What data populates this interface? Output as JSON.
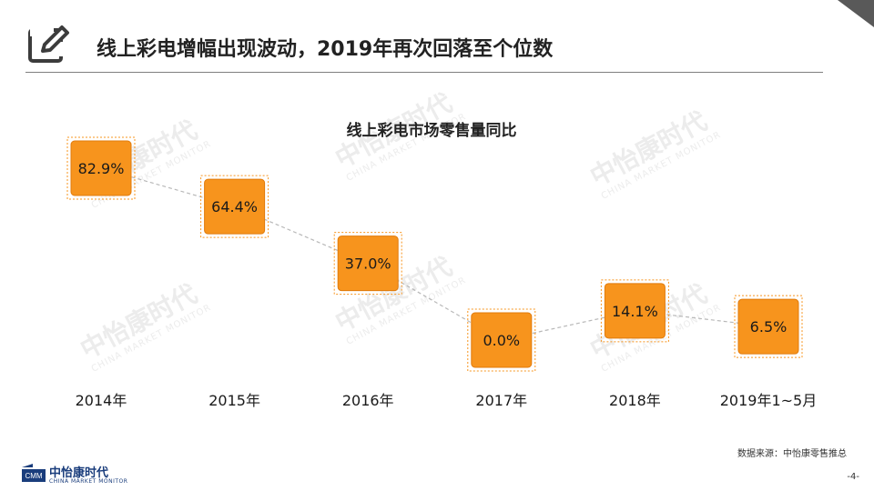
{
  "slide": {
    "title": "线上彩电增幅出现波动，2019年再次回落至个位数",
    "source": "数据来源：中怡康零售推总",
    "page_number": "-4-"
  },
  "logo": {
    "cn": "中怡康时代",
    "en": "CHINA MARKET MONITOR"
  },
  "watermark": {
    "cn": "中怡康时代",
    "en": "CHINA MARKET MONITOR"
  },
  "colors": {
    "box_fill": "#f7941d",
    "box_border": "#e07b0c",
    "connector": "#b8b8b8",
    "corner": "#595959"
  },
  "chart_data": {
    "type": "line",
    "title": "线上彩电市场零售量同比",
    "categories": [
      "2014年",
      "2015年",
      "2016年",
      "2017年",
      "2018年",
      "2019年1~5月"
    ],
    "values": [
      82.9,
      64.4,
      37.0,
      0.0,
      14.1,
      6.5
    ],
    "value_labels": [
      "82.9%",
      "64.4%",
      "37.0%",
      "0.0%",
      "14.1%",
      "6.5%"
    ],
    "unit": "%",
    "grid": false,
    "legend": "none"
  }
}
